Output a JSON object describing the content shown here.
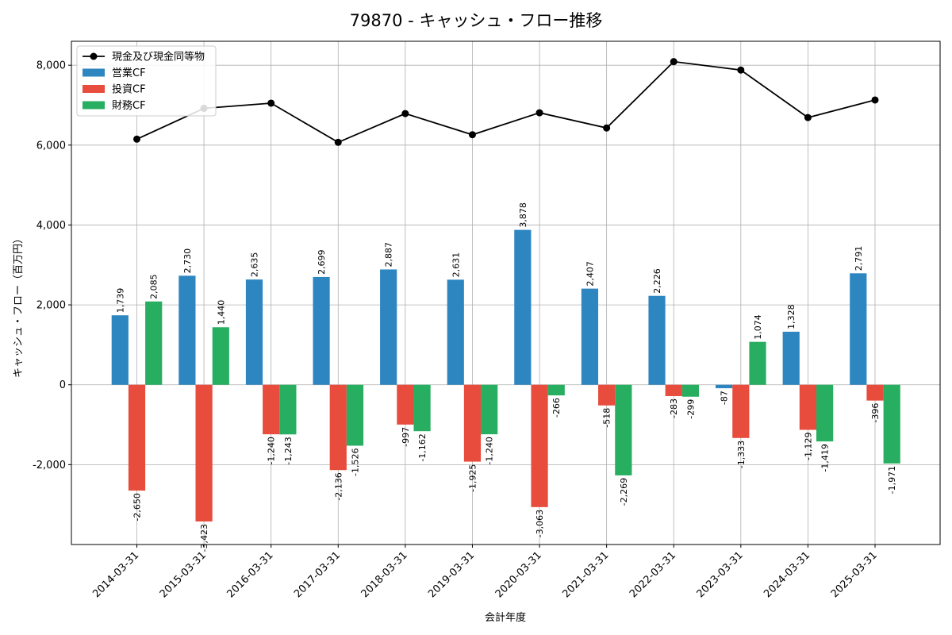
{
  "chart_data": {
    "type": "bar",
    "title": "79870 - キャッシュ・フロー推移",
    "xlabel": "会計年度",
    "ylabel": "キャッシュ・フロー（百万円）",
    "categories": [
      "2014-03-31",
      "2015-03-31",
      "2016-03-31",
      "2017-03-31",
      "2018-03-31",
      "2019-03-31",
      "2020-03-31",
      "2021-03-31",
      "2022-03-31",
      "2023-03-31",
      "2024-03-31",
      "2025-03-31"
    ],
    "series": [
      {
        "name": "営業CF",
        "kind": "bar",
        "color": "#2e86c1",
        "values": [
          1739,
          2730,
          2635,
          2699,
          2887,
          2631,
          3878,
          2407,
          2226,
          -87,
          1328,
          2791
        ],
        "labels": [
          "1,739",
          "2,730",
          "2,635",
          "2,699",
          "2,887",
          "2,631",
          "3,878",
          "2,407",
          "2,226",
          "-87",
          "1,328",
          "2,791"
        ]
      },
      {
        "name": "投資CF",
        "kind": "bar",
        "color": "#e74c3c",
        "values": [
          -2650,
          -3423,
          -1240,
          -2136,
          -997,
          -1925,
          -3063,
          -518,
          -283,
          -1333,
          -1129,
          -396
        ],
        "labels": [
          "-2,650",
          "-3,423",
          "-1,240",
          "-2,136",
          "-997",
          "-1,925",
          "-3,063",
          "-518",
          "-283",
          "-1,333",
          "-1,129",
          "-396"
        ]
      },
      {
        "name": "財務CF",
        "kind": "bar",
        "color": "#27ae60",
        "values": [
          2085,
          1440,
          -1243,
          -1526,
          -1162,
          -1240,
          -266,
          -2269,
          -299,
          1074,
          -1419,
          -1971
        ],
        "labels": [
          "2,085",
          "1,440",
          "-1,243",
          "-1,526",
          "-1,162",
          "-1,240",
          "-266",
          "-2,269",
          "-299",
          "1,074",
          "-1,419",
          "-1,971"
        ]
      },
      {
        "name": "現金及び現金同等物",
        "kind": "line",
        "color": "#000000",
        "values": [
          6150,
          6920,
          7050,
          6070,
          6790,
          6260,
          6810,
          6430,
          8090,
          7880,
          6690,
          7130
        ]
      }
    ],
    "ylim": [
      -4000,
      8600
    ],
    "yticks": [
      -2000,
      0,
      2000,
      4000,
      6000,
      8000
    ],
    "ytick_labels": [
      "-2,000",
      "0",
      "2,000",
      "4,000",
      "6,000",
      "8,000"
    ],
    "grid": true,
    "legend_position": "top-left"
  }
}
